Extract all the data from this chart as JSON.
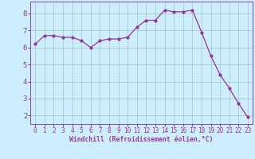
{
  "x": [
    0,
    1,
    2,
    3,
    4,
    5,
    6,
    7,
    8,
    9,
    10,
    11,
    12,
    13,
    14,
    15,
    16,
    17,
    18,
    19,
    20,
    21,
    22,
    23
  ],
  "y": [
    6.2,
    6.7,
    6.7,
    6.6,
    6.6,
    6.4,
    6.0,
    6.4,
    6.5,
    6.5,
    6.6,
    7.2,
    7.6,
    7.6,
    8.2,
    8.1,
    8.1,
    8.2,
    6.9,
    5.5,
    4.4,
    3.6,
    2.7,
    1.9
  ],
  "line_color": "#993399",
  "marker": "o",
  "marker_size": 2.0,
  "bg_color": "#cceeff",
  "grid_color": "#aacccc",
  "xlabel": "Windchill (Refroidissement éolien,°C)",
  "xlabel_color": "#993399",
  "tick_color": "#993399",
  "spine_color": "#8844aa",
  "ylim": [
    1.5,
    8.7
  ],
  "xlim": [
    -0.5,
    23.5
  ],
  "yticks": [
    2,
    3,
    4,
    5,
    6,
    7,
    8
  ],
  "xticks": [
    0,
    1,
    2,
    3,
    4,
    5,
    6,
    7,
    8,
    9,
    10,
    11,
    12,
    13,
    14,
    15,
    16,
    17,
    18,
    19,
    20,
    21,
    22,
    23
  ],
  "tick_fontsize": 5.5,
  "xlabel_fontsize": 5.8,
  "ytick_fontsize": 6.5
}
